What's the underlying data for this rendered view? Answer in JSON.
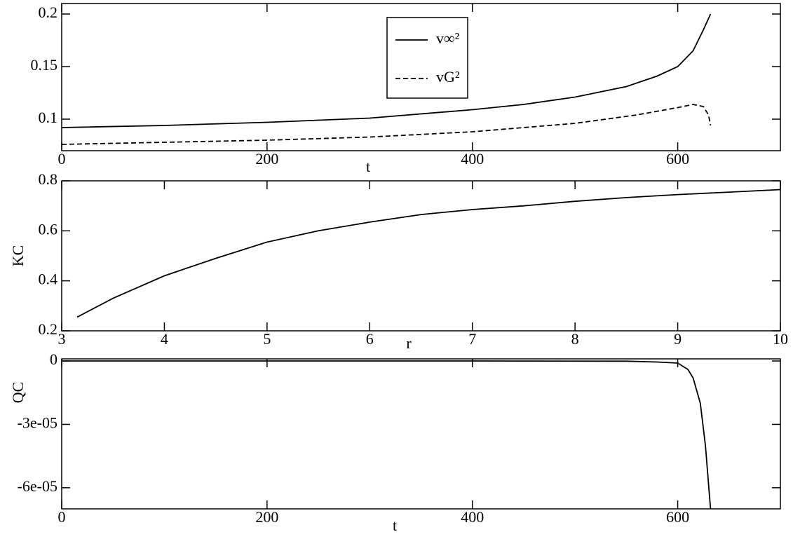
{
  "chart_data": [
    {
      "type": "line",
      "x_label": "t",
      "xlim": [
        0,
        700
      ],
      "xticks": [
        0,
        200,
        400,
        600
      ],
      "ylim": [
        0.07,
        0.21
      ],
      "yticks": [
        0.1,
        0.15,
        0.2
      ],
      "legend": "top-center",
      "series": [
        {
          "name": "v∞²",
          "color": "#000000",
          "style": "solid",
          "x": [
            0,
            100,
            200,
            300,
            400,
            450,
            500,
            550,
            580,
            600,
            615,
            625,
            632
          ],
          "values": [
            0.092,
            0.094,
            0.097,
            0.101,
            0.109,
            0.114,
            0.121,
            0.131,
            0.141,
            0.15,
            0.165,
            0.185,
            0.2
          ]
        },
        {
          "name": "vG²",
          "color": "#000000",
          "style": "dashed",
          "x": [
            0,
            100,
            200,
            300,
            400,
            500,
            560,
            600,
            615,
            625,
            630,
            632
          ],
          "values": [
            0.076,
            0.078,
            0.08,
            0.083,
            0.088,
            0.096,
            0.104,
            0.111,
            0.114,
            0.112,
            0.104,
            0.094
          ]
        }
      ]
    },
    {
      "type": "line",
      "x_label": "r",
      "y_label": "KC",
      "xlim": [
        3,
        10
      ],
      "xticks": [
        3,
        4,
        5,
        6,
        7,
        8,
        9,
        10
      ],
      "ylim": [
        0.2,
        0.8
      ],
      "yticks": [
        0.2,
        0.4,
        0.6,
        0.8
      ],
      "series": [
        {
          "color": "#000000",
          "style": "solid",
          "x": [
            3.15,
            3.5,
            4,
            4.5,
            5,
            5.5,
            6,
            6.5,
            7,
            7.5,
            8,
            8.5,
            9,
            9.5,
            10
          ],
          "values": [
            0.255,
            0.33,
            0.42,
            0.49,
            0.555,
            0.6,
            0.635,
            0.665,
            0.685,
            0.7,
            0.718,
            0.733,
            0.745,
            0.755,
            0.765
          ]
        }
      ]
    },
    {
      "type": "line",
      "x_label": "t",
      "y_label": "QC",
      "xlim": [
        0,
        700
      ],
      "xticks": [
        0,
        200,
        400,
        600
      ],
      "ylim": [
        -7e-05,
        1e-06
      ],
      "yticks": [
        {
          "value": -6e-05,
          "label": "-6e-05"
        },
        {
          "value": -3e-05,
          "label": "-3e-05"
        },
        0
      ],
      "series": [
        {
          "color": "#000000",
          "style": "solid",
          "x": [
            0,
            200,
            400,
            550,
            580,
            600,
            610,
            615,
            622,
            627,
            632
          ],
          "values": [
            0,
            0,
            0,
            -1e-07,
            -5e-07,
            -1e-06,
            -4e-06,
            -8e-06,
            -2e-05,
            -4e-05,
            -7e-05
          ]
        }
      ]
    }
  ]
}
